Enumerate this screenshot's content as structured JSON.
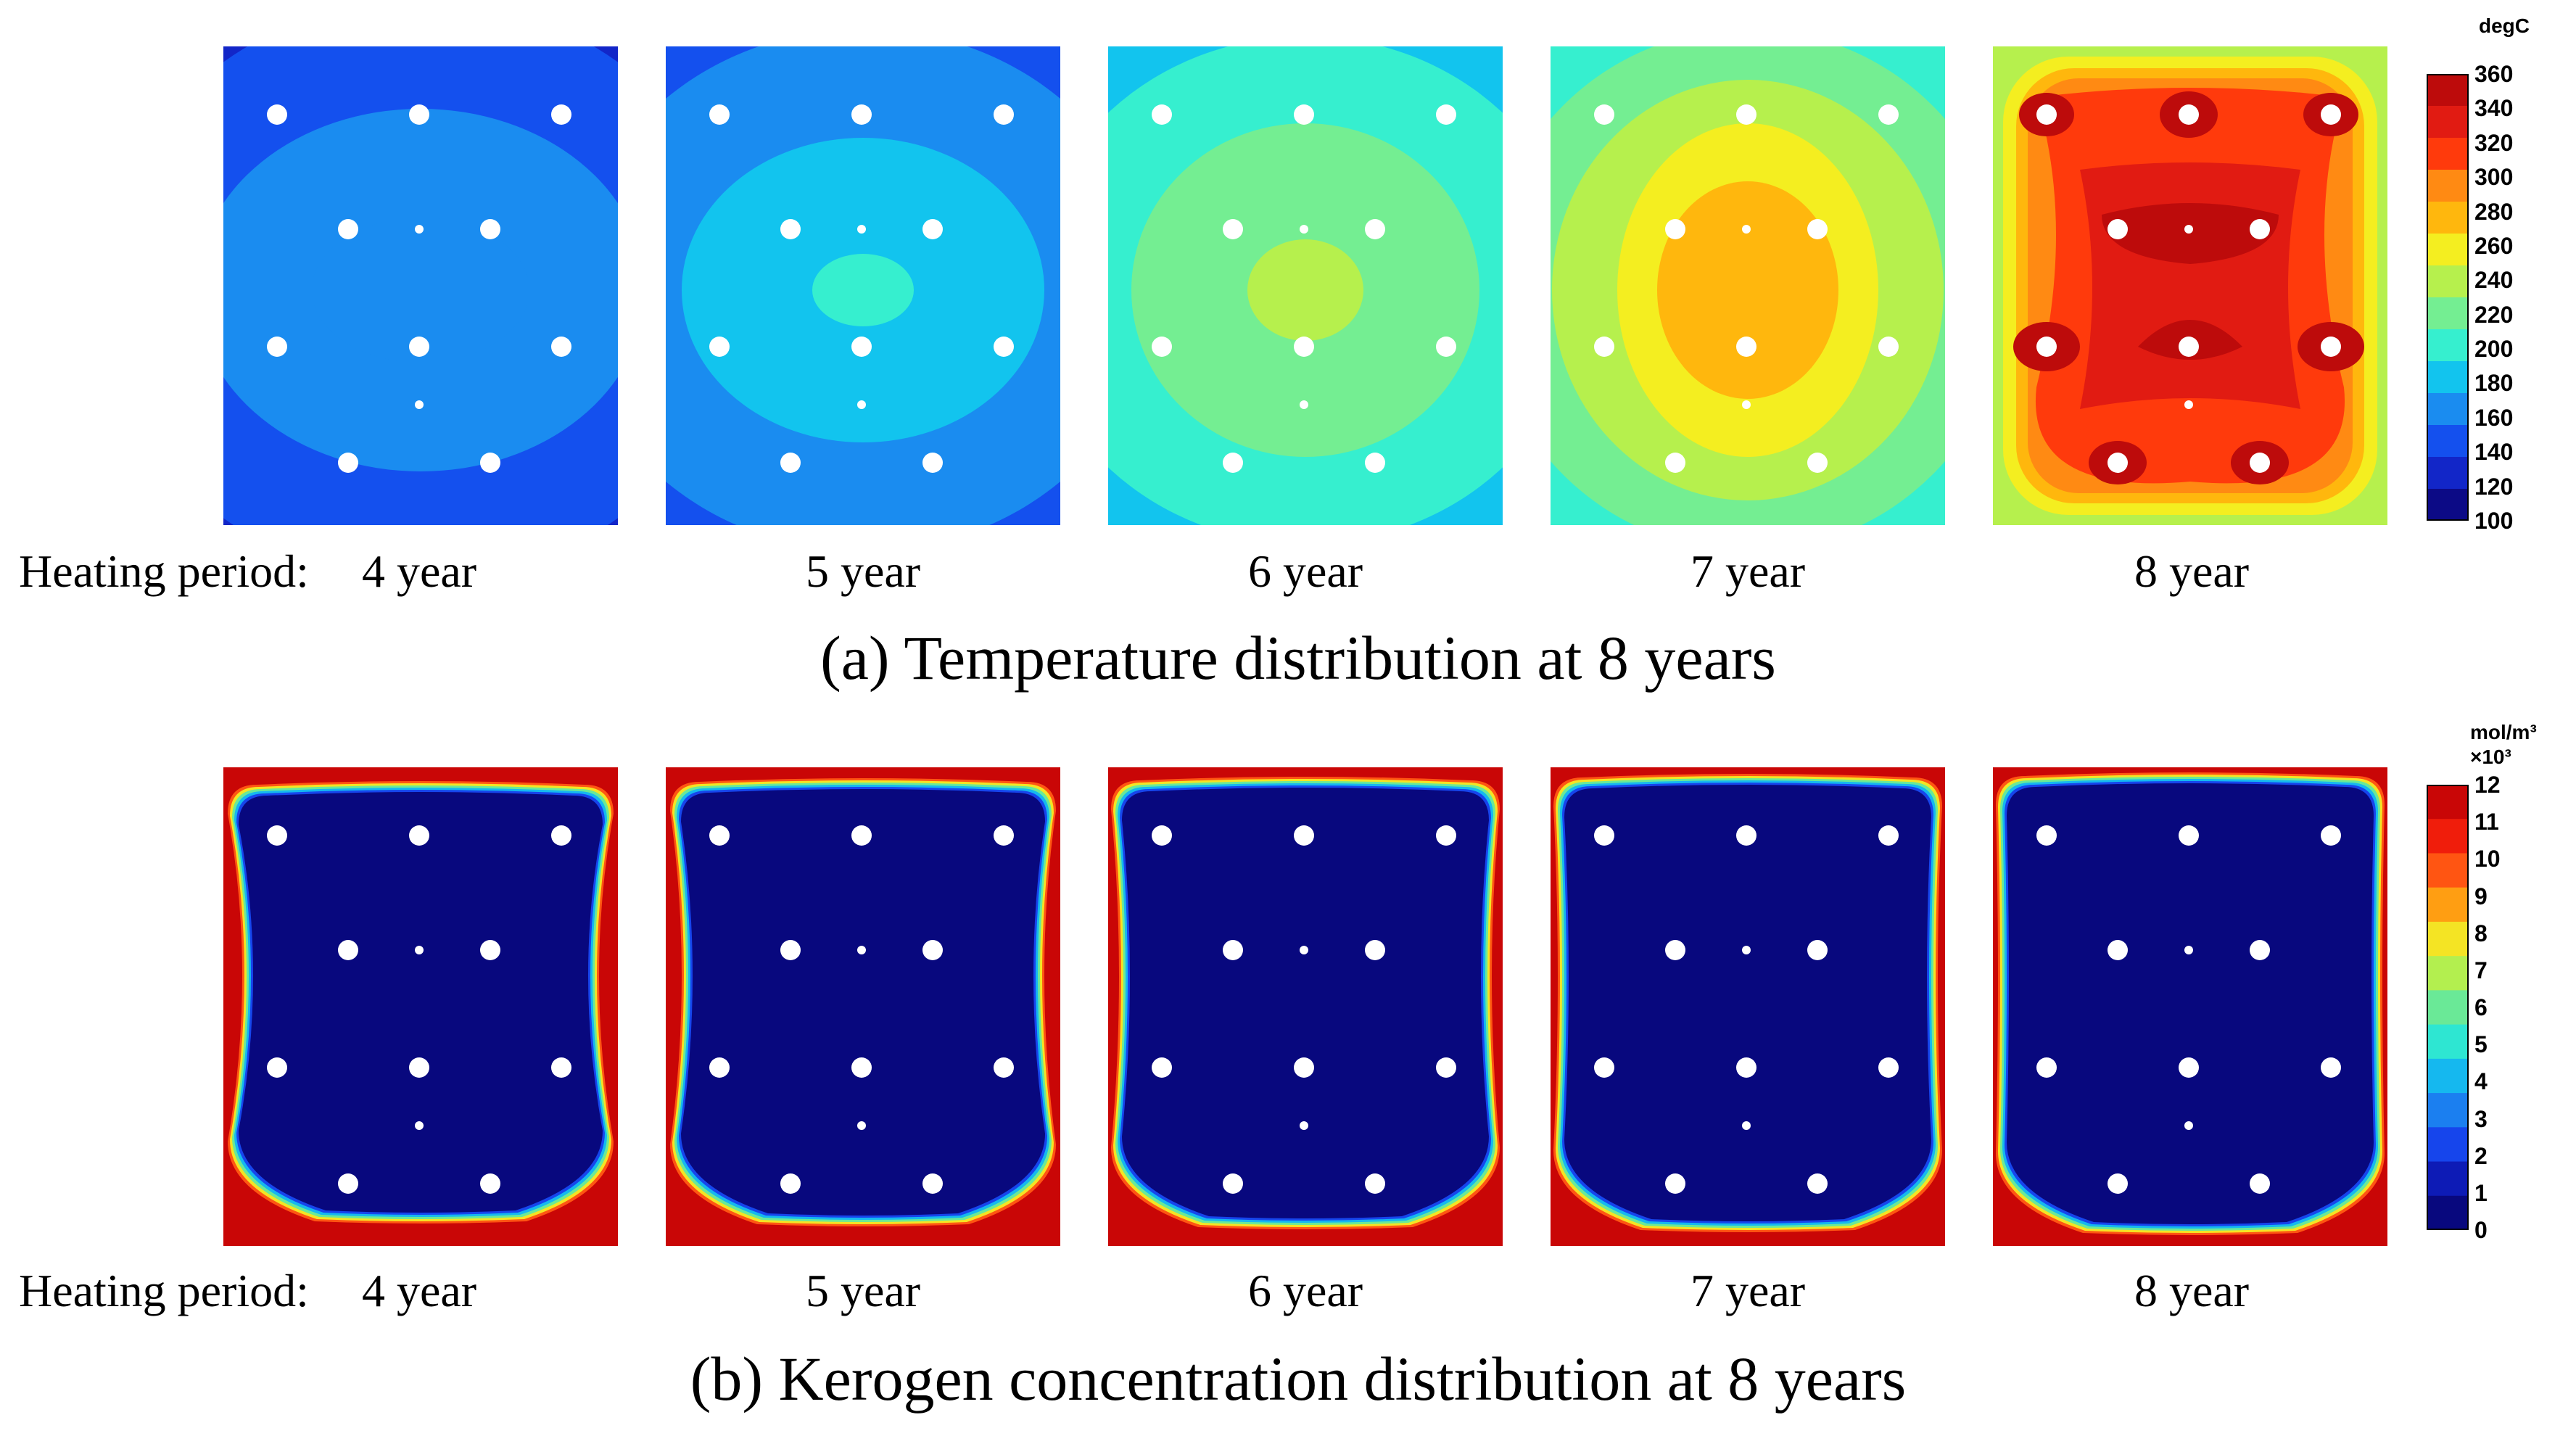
{
  "figure": {
    "row_a": {
      "caption": "(a) Temperature distribution at 8 years",
      "heating_label": "Heating period:",
      "panel_labels": [
        "4 year",
        "5 year",
        "6 year",
        "7 year",
        "8 year"
      ],
      "colorbar": {
        "unit": "degC",
        "ticks": [
          "360",
          "340",
          "320",
          "300",
          "280",
          "260",
          "240",
          "220",
          "200",
          "180",
          "160",
          "140",
          "120",
          "100"
        ],
        "colors": [
          "#bd0b0b",
          "#e11b12",
          "#ff3a0c",
          "#ff8a13",
          "#ffb70d",
          "#f4ee20",
          "#b6f04d",
          "#74ee92",
          "#36efcf",
          "#12c4ee",
          "#1a8cf0",
          "#1450ee",
          "#1226c8",
          "#0c0a86"
        ]
      }
    },
    "row_b": {
      "caption": "(b) Kerogen concentration distribution at 8 years",
      "heating_label": "Heating period:",
      "panel_labels": [
        "4 year",
        "5 year",
        "6 year",
        "7 year",
        "8 year"
      ],
      "colorbar": {
        "unit_line1": "mol/m³",
        "unit_line2": "×10³",
        "ticks": [
          "12",
          "11",
          "10",
          "9",
          "8",
          "7",
          "6",
          "5",
          "4",
          "3",
          "2",
          "1",
          "0"
        ],
        "colors": [
          "#c90606",
          "#f01d0b",
          "#ff5512",
          "#ff9e12",
          "#f4e424",
          "#b3ef4f",
          "#6ae997",
          "#2ee6d2",
          "#15b8ef",
          "#1b7ff0",
          "#1645ec",
          "#0d1bb6",
          "#08087e"
        ]
      }
    }
  }
}
